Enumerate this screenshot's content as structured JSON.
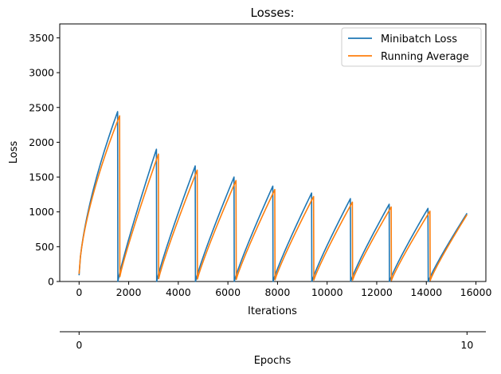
{
  "chart_data": {
    "type": "line",
    "title": "Losses:",
    "xlabel": "Iterations",
    "ylabel": "Loss",
    "secondary_xlabel": "Epochs",
    "xlim": [
      -780,
      16400
    ],
    "ylim": [
      0,
      3700
    ],
    "xticks": [
      0,
      2000,
      4000,
      6000,
      8000,
      10000,
      12000,
      14000,
      16000
    ],
    "yticks": [
      0,
      500,
      1000,
      1500,
      2000,
      2500,
      3000,
      3500
    ],
    "secondary_ticks": [
      {
        "iteration": 0,
        "label": "0"
      },
      {
        "iteration": 15640,
        "label": "10"
      }
    ],
    "grid": false,
    "legend": "top-right",
    "epoch_iterations": 1564,
    "series": [
      {
        "name": "Minibatch Loss",
        "color": "#1f77b4",
        "peaks": [
          2440,
          1900,
          1660,
          1500,
          1370,
          1270,
          1190,
          1110,
          1050,
          980
        ],
        "start_values": [
          90,
          0,
          0,
          0,
          0,
          0,
          0,
          0,
          0,
          0
        ],
        "lag": 0
      },
      {
        "name": "Running Average",
        "color": "#ff7f0e",
        "peaks": [
          2380,
          1830,
          1600,
          1450,
          1320,
          1220,
          1140,
          1070,
          1010,
          960
        ],
        "start_values": [
          110,
          70,
          40,
          35,
          30,
          25,
          20,
          20,
          15,
          15
        ],
        "lag": 80
      }
    ]
  }
}
